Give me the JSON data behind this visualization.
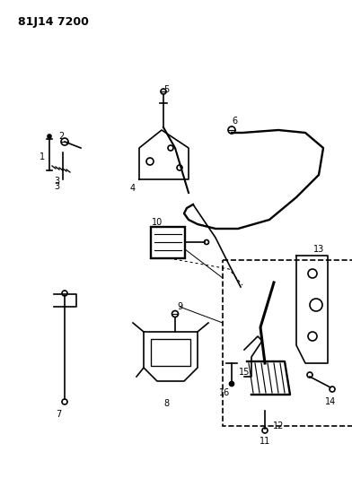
{
  "title": "81J14 7200",
  "bg_color": "#ffffff",
  "line_color": "#000000",
  "fig_width": 3.92,
  "fig_height": 5.33,
  "dpi": 100
}
